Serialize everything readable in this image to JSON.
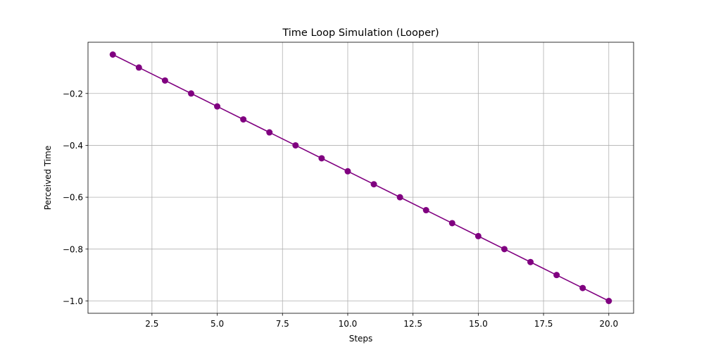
{
  "chart_data": {
    "type": "line",
    "title": "Time Loop Simulation (Looper)",
    "xlabel": "Steps",
    "ylabel": "Perceived Time",
    "xlim": [
      0.05,
      20.95
    ],
    "ylim": [
      -1.0475,
      -0.0025
    ],
    "grid": true,
    "x_ticks": [
      2.5,
      5.0,
      7.5,
      10.0,
      12.5,
      15.0,
      17.5,
      20.0
    ],
    "x_tick_labels": [
      "2.5",
      "5.0",
      "7.5",
      "10.0",
      "12.5",
      "15.0",
      "17.5",
      "20.0"
    ],
    "y_ticks": [
      -0.2,
      -0.4,
      -0.6,
      -0.8,
      -1.0
    ],
    "y_tick_labels": [
      "−0.2",
      "−0.4",
      "−0.6",
      "−0.8",
      "−1.0"
    ],
    "series": [
      {
        "color": "#800080",
        "marker": "circle",
        "x": [
          1,
          2,
          3,
          4,
          5,
          6,
          7,
          8,
          9,
          10,
          11,
          12,
          13,
          14,
          15,
          16,
          17,
          18,
          19,
          20
        ],
        "y": [
          -0.05,
          -0.1,
          -0.15,
          -0.2,
          -0.25,
          -0.3,
          -0.35,
          -0.4,
          -0.45,
          -0.5,
          -0.55,
          -0.6,
          -0.65,
          -0.7,
          -0.75,
          -0.8,
          -0.85,
          -0.9,
          -0.95,
          -1.0
        ]
      }
    ]
  },
  "colors": {
    "grid": "#b0b0b0",
    "axes": "#000000",
    "series": "#800080"
  }
}
